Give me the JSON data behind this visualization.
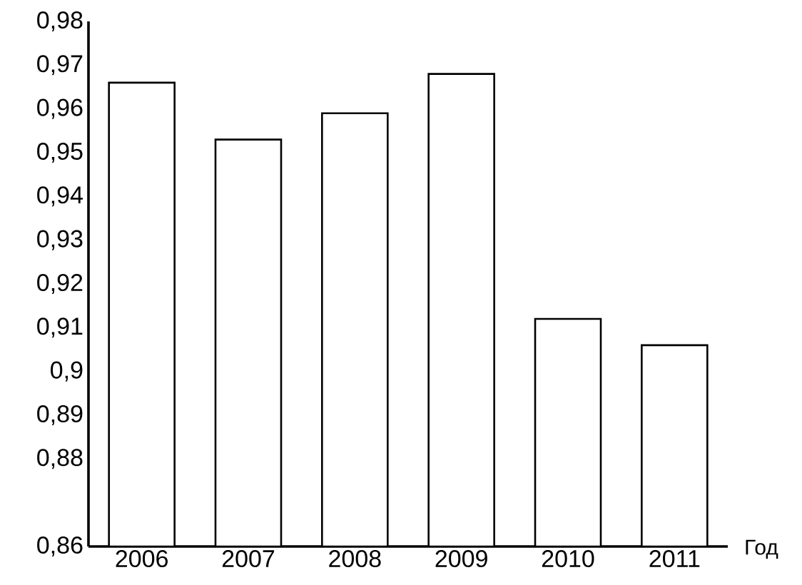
{
  "chart_data": {
    "type": "bar",
    "xlabel": "Год",
    "categories": [
      "2006",
      "2007",
      "2008",
      "2009",
      "2010",
      "2011"
    ],
    "series": [
      {
        "color": "#ffffff",
        "values": [
          0.966,
          0.953,
          0.959,
          0.968,
          0.912,
          0.906
        ]
      }
    ],
    "ylim": [
      0.86,
      0.98
    ],
    "yticks": [
      {
        "value": 0.86,
        "label": "0,86"
      },
      {
        "value": 0.88,
        "label": "0,88"
      },
      {
        "value": 0.89,
        "label": "0,89"
      },
      {
        "value": 0.9,
        "label": "0,9"
      },
      {
        "value": 0.91,
        "label": "0,91"
      },
      {
        "value": 0.92,
        "label": "0,92"
      },
      {
        "value": 0.93,
        "label": "0,93"
      },
      {
        "value": 0.94,
        "label": "0,94"
      },
      {
        "value": 0.95,
        "label": "0,95"
      },
      {
        "value": 0.96,
        "label": "0,96"
      },
      {
        "value": 0.97,
        "label": "0,97"
      },
      {
        "value": 0.98,
        "label": "0,98"
      }
    ],
    "grid": false
  }
}
